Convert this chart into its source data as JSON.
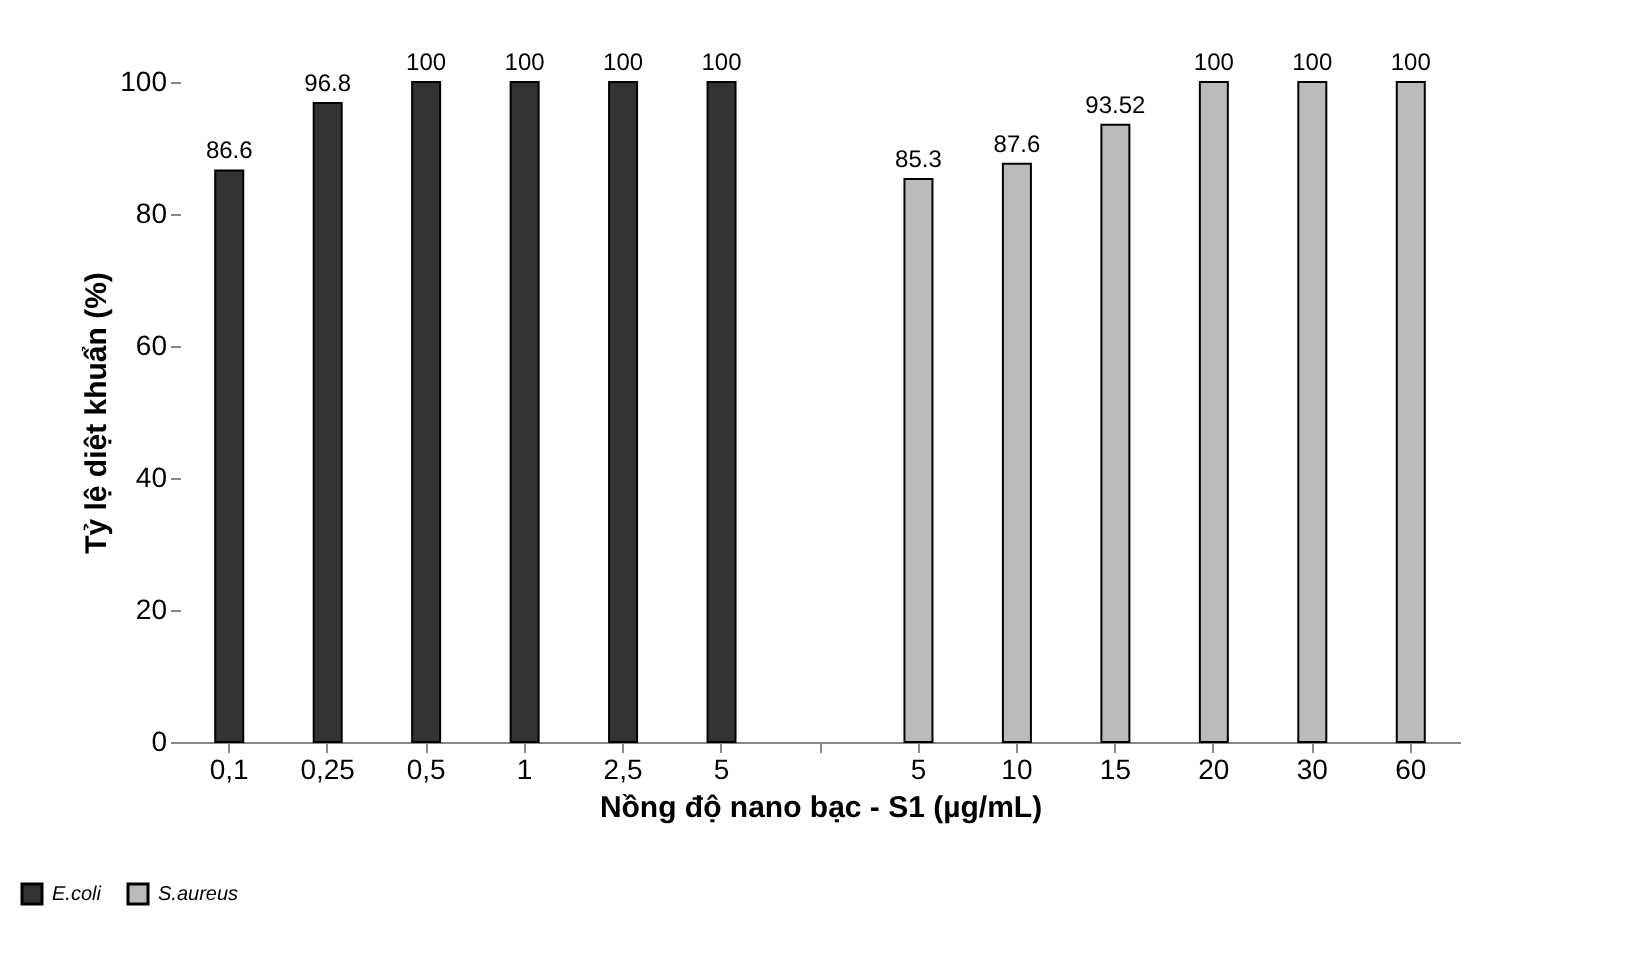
{
  "chart_data": {
    "type": "bar",
    "xlabel": "Nồng độ nano bạc - S1 (µg/mL)",
    "ylabel": "Tỷ lệ diệt khuẩn (%)",
    "categories": [
      "0,1",
      "0,25",
      "0,5",
      "1",
      "2,5",
      "5",
      null,
      "5",
      "10",
      "15",
      "20",
      "30",
      "60"
    ],
    "series": [
      {
        "name": "E.coli",
        "color": "#333333",
        "values": [
          86.6,
          96.8,
          100,
          100,
          100,
          100,
          null,
          null,
          null,
          null,
          null,
          null,
          null
        ]
      },
      {
        "name": "S.aureus",
        "color": "#bbbbbb",
        "values": [
          null,
          null,
          null,
          null,
          null,
          null,
          null,
          85.3,
          87.6,
          93.52,
          100,
          100,
          100
        ]
      }
    ],
    "ylim": [
      0,
      100
    ],
    "yticks": [
      0,
      20,
      40,
      60,
      80,
      100
    ],
    "grid": false,
    "data_labels": true,
    "legend": "bottom left"
  }
}
